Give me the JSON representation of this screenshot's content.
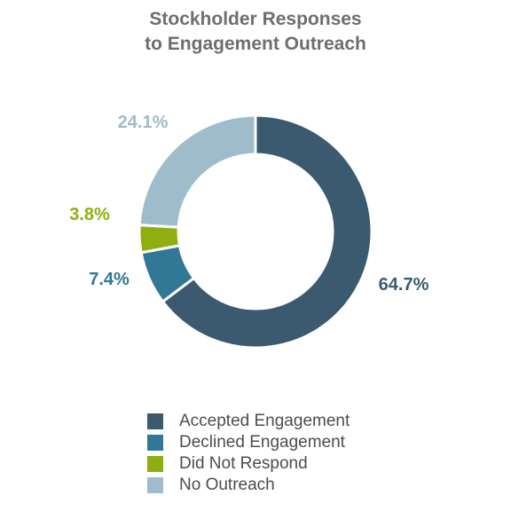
{
  "chart_data": {
    "type": "pie",
    "variant": "donut",
    "title_line1": "Stockholder Responses",
    "title_line2": "to Engagement Outreach",
    "legend_position": "bottom",
    "slices": [
      {
        "name": "Accepted Engagement",
        "value": 64.7,
        "label": "64.7%",
        "color": "#3b5a6f"
      },
      {
        "name": "Declined Engagement",
        "value": 7.4,
        "label": "7.4%",
        "color": "#307895"
      },
      {
        "name": "Did Not Respond",
        "value": 3.8,
        "label": "3.8%",
        "color": "#8faf10"
      },
      {
        "name": "No Outreach",
        "value": 24.1,
        "label": "24.1%",
        "color": "#9fbccb"
      }
    ]
  }
}
